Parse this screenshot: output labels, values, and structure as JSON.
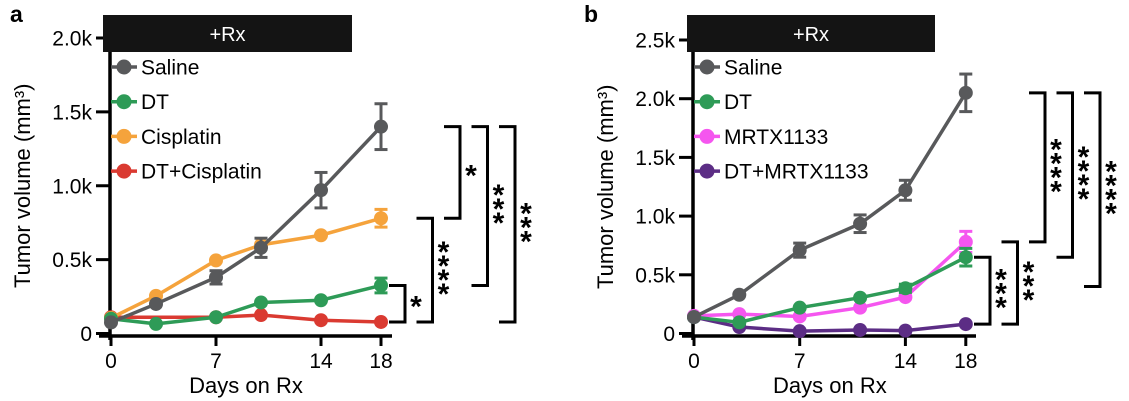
{
  "chart_data": [
    {
      "type": "line",
      "panel_label": "a",
      "treatment_bar_label": "+Rx",
      "xlabel": "Days on Rx",
      "ylabel": "Tumor volume (mm³)",
      "xlim": [
        0,
        19
      ],
      "ylim": [
        0,
        2000
      ],
      "grid": false,
      "legend_position": "upper-left",
      "xticks": [
        {
          "v": 0,
          "label": "0"
        },
        {
          "v": 7,
          "label": "7"
        },
        {
          "v": 14,
          "label": "14"
        },
        {
          "v": 18,
          "label": "18"
        }
      ],
      "yticks": [
        {
          "v": 0,
          "label": "0"
        },
        {
          "v": 500,
          "label": "0.5k"
        },
        {
          "v": 1000,
          "label": "1.0k"
        },
        {
          "v": 1500,
          "label": "1.5k"
        },
        {
          "v": 2000,
          "label": "2.0k"
        }
      ],
      "series": [
        {
          "name": "Saline",
          "color": "#58595b",
          "x": [
            0,
            3,
            7,
            10,
            14,
            18
          ],
          "y": [
            75,
            200,
            380,
            580,
            970,
            1400
          ],
          "err": [
            0,
            0,
            45,
            65,
            120,
            155
          ]
        },
        {
          "name": "DT",
          "color": "#2e9b57",
          "x": [
            0,
            3,
            7,
            10,
            14,
            18
          ],
          "y": [
            100,
            65,
            110,
            210,
            225,
            325
          ],
          "err": [
            0,
            0,
            0,
            0,
            0,
            50
          ]
        },
        {
          "name": "Cisplatin",
          "color": "#f5a33c",
          "x": [
            0,
            3,
            7,
            10,
            14,
            18
          ],
          "y": [
            105,
            255,
            495,
            600,
            665,
            780
          ],
          "err": [
            0,
            0,
            0,
            0,
            0,
            60
          ]
        },
        {
          "name": "DT+Cisplatin",
          "color": "#da3a31",
          "x": [
            0,
            7,
            10,
            14,
            18
          ],
          "y": [
            110,
            110,
            125,
            90,
            78
          ],
          "err": [
            0,
            0,
            0,
            0,
            0
          ]
        }
      ],
      "significance_brackets": [
        {
          "groups": [
            "DT",
            "DT+Cisplatin"
          ],
          "label": "*"
        },
        {
          "groups": [
            "Cisplatin",
            "DT+Cisplatin"
          ],
          "label": "****"
        },
        {
          "groups": [
            "Saline",
            "Cisplatin"
          ],
          "label": "*"
        },
        {
          "groups": [
            "Saline",
            "DT"
          ],
          "label": "***"
        },
        {
          "groups": [
            "Saline",
            "DT+Cisplatin"
          ],
          "label": "***"
        }
      ]
    },
    {
      "type": "line",
      "panel_label": "b",
      "treatment_bar_label": "+Rx",
      "xlabel": "Days on Rx",
      "ylabel": "Tumor volume (mm³)",
      "xlim": [
        0,
        19
      ],
      "ylim": [
        0,
        2500
      ],
      "grid": false,
      "legend_position": "upper-left",
      "xticks": [
        {
          "v": 0,
          "label": "0"
        },
        {
          "v": 7,
          "label": "7"
        },
        {
          "v": 14,
          "label": "14"
        },
        {
          "v": 18,
          "label": "18"
        }
      ],
      "yticks": [
        {
          "v": 0,
          "label": "0"
        },
        {
          "v": 500,
          "label": "0.5k"
        },
        {
          "v": 1000,
          "label": "1.0k"
        },
        {
          "v": 1500,
          "label": "1.5k"
        },
        {
          "v": 2000,
          "label": "2.0k"
        },
        {
          "v": 2500,
          "label": "2.5k"
        }
      ],
      "series": [
        {
          "name": "Saline",
          "color": "#58595b",
          "x": [
            0,
            3,
            7,
            11,
            14,
            18
          ],
          "y": [
            140,
            330,
            710,
            935,
            1220,
            2050
          ],
          "err": [
            0,
            0,
            60,
            75,
            85,
            160
          ]
        },
        {
          "name": "DT",
          "color": "#2e9b57",
          "x": [
            0,
            3,
            7,
            11,
            14,
            18
          ],
          "y": [
            140,
            95,
            220,
            305,
            385,
            650
          ],
          "err": [
            0,
            0,
            0,
            0,
            35,
            75
          ]
        },
        {
          "name": "MRTX1133",
          "color": "#f556ef",
          "x": [
            0,
            3,
            7,
            11,
            14,
            18
          ],
          "y": [
            150,
            165,
            145,
            220,
            310,
            780
          ],
          "err": [
            0,
            0,
            0,
            0,
            0,
            90
          ]
        },
        {
          "name": "DT+MRTX1133",
          "color": "#5c2d85",
          "x": [
            0,
            3,
            7,
            11,
            14,
            18
          ],
          "y": [
            140,
            55,
            20,
            30,
            25,
            80
          ],
          "err": [
            0,
            0,
            0,
            0,
            0,
            0
          ]
        }
      ],
      "significance_brackets": [
        {
          "groups": [
            "DT",
            "DT+MRTX1133"
          ],
          "label": "***"
        },
        {
          "groups": [
            "MRTX1133",
            "DT+MRTX1133"
          ],
          "label": "***"
        },
        {
          "groups": [
            "Saline",
            "MRTX1133"
          ],
          "label": "****"
        },
        {
          "groups": [
            "Saline",
            "DT"
          ],
          "label": "****"
        },
        {
          "groups": [
            "Saline",
            "DT+MRTX1133"
          ],
          "label": "****",
          "bottom_value": 400
        }
      ]
    }
  ]
}
